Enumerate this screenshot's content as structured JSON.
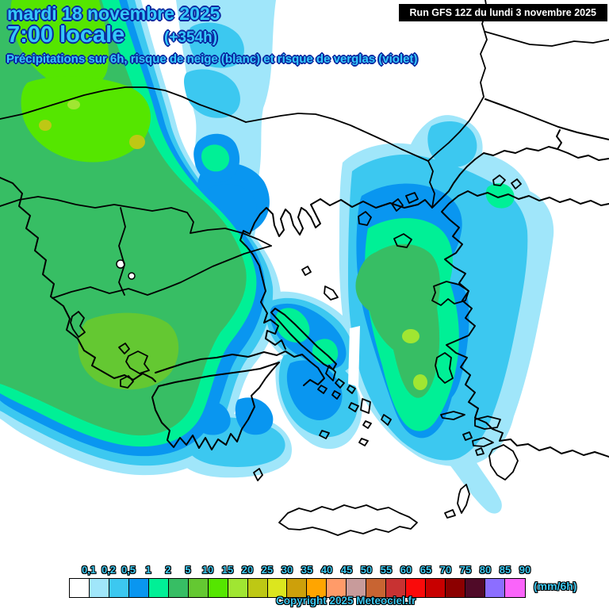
{
  "header": {
    "date_line": "mardi 18 novembre 2025",
    "time_line": "7:00 locale",
    "run_offset": "(+354h)",
    "subtitle": "Précipitations sur 6h, risque de neige (blanc) et risque de verglas (violet)"
  },
  "run_box": {
    "text": "Run GFS 12Z du lundi 3 novembre 2025"
  },
  "footer": {
    "copyright": "Copyright 2025 Meteociel.fr"
  },
  "legend": {
    "unit": "(mm/6h)",
    "tick_labels": [
      "0,1",
      "0,2",
      "0,5",
      "1",
      "2",
      "5",
      "10",
      "15",
      "20",
      "25",
      "30",
      "35",
      "40",
      "45",
      "50",
      "55",
      "60",
      "65",
      "70",
      "75",
      "80",
      "85",
      "90"
    ],
    "cell_colors": [
      "#FFFFFF",
      "#A0E6FA",
      "#3CC8F0",
      "#0996F0",
      "#00F096",
      "#37BE64",
      "#64C832",
      "#55E600",
      "#A0E632",
      "#BEC814",
      "#DCE61E",
      "#CDA00A",
      "#FFA500",
      "#FF9B69",
      "#C89B9B",
      "#C86432",
      "#C83232",
      "#FA0A0A",
      "#C80000",
      "#8C0000",
      "#500A28",
      "#8C6EFF",
      "#FA64FA"
    ]
  },
  "colors": {
    "header_text": "#35C8FA",
    "header_outline": "#0A28A0",
    "legend_text": "#3CC8F0",
    "box_bg": "#000000",
    "box_text": "#FFFFFF"
  },
  "map": {
    "palette": {
      "rain_light": "#A0E6FA",
      "rain_cyan": "#3CC8F0",
      "rain_blue": "#0996F0",
      "rain_spring": "#00F096",
      "rain_green": "#37BE64",
      "rain_olivegreen": "#64C832",
      "rain_bright": "#55E600",
      "rain_yellowgreen": "#A0E632",
      "rain_olive": "#BEC814",
      "sea": "#FFFFFF",
      "coast": "#000000"
    }
  }
}
